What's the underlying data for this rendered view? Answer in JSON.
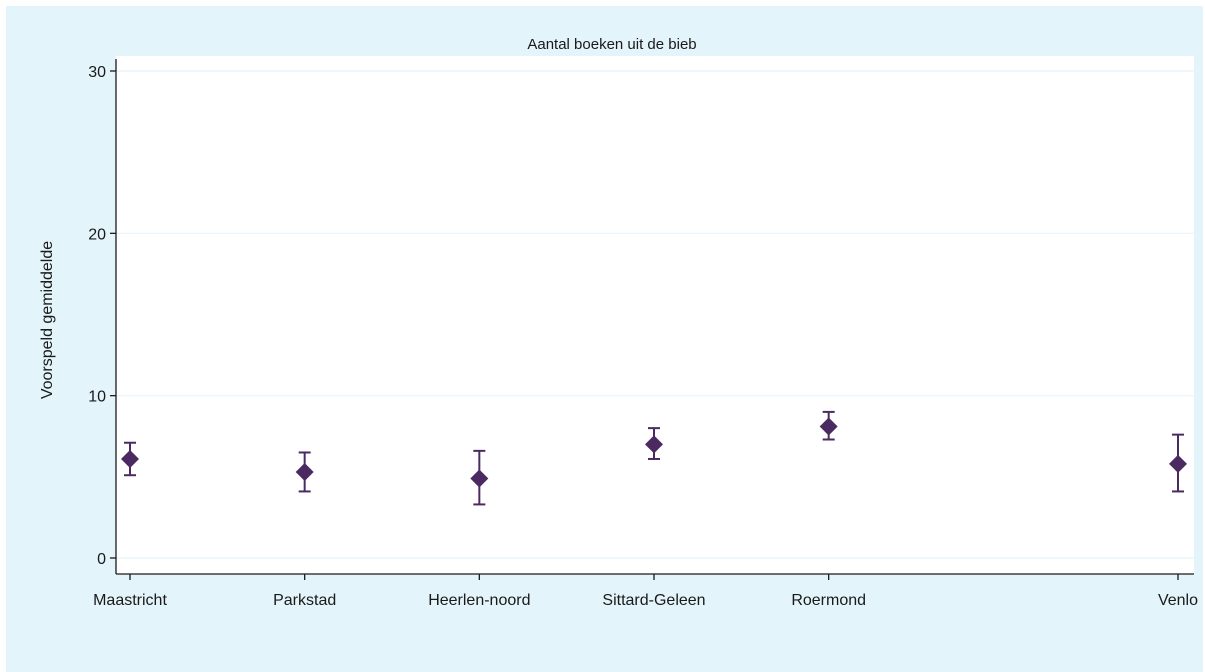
{
  "chart_data": {
    "type": "scatter",
    "title": "Aantal boeken uit de bieb",
    "xlabel": "",
    "ylabel": "Voorspeld gemiddelde",
    "ylim": [
      0,
      30
    ],
    "yticks": [
      0,
      10,
      20,
      30
    ],
    "grid": true,
    "categories": [
      "Maastricht",
      "Parkstad",
      "Heerlen-noord",
      "Sittard-Geleen",
      "Roermond",
      "Venlo"
    ],
    "x": [
      1,
      2,
      3,
      4,
      5,
      7
    ],
    "values": [
      6.1,
      5.3,
      4.9,
      7.0,
      8.1,
      5.8
    ],
    "ci_lower": [
      5.1,
      4.1,
      3.3,
      6.1,
      7.3,
      4.1
    ],
    "ci_upper": [
      7.1,
      6.5,
      6.6,
      8.0,
      9.0,
      7.6
    ],
    "colors": {
      "background": "#e3f4fb",
      "plot_area": "#ffffff",
      "marker": "#4b2a62",
      "grid": "#e3f4fb",
      "axis": "#1a1a1a"
    }
  }
}
